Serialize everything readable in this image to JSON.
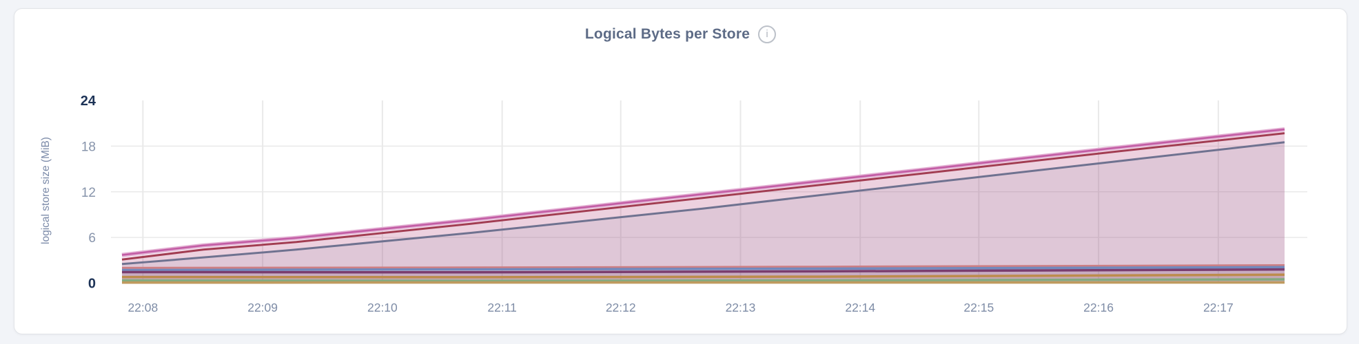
{
  "page": {
    "background": "#f2f4f8",
    "card_background": "#ffffff",
    "card_border": "#e2e4e8"
  },
  "header": {
    "title": "Logical Bytes per Store",
    "info_glyph": "i"
  },
  "chart_data": {
    "type": "area",
    "title": "Logical Bytes per Store",
    "xlabel": "",
    "ylabel": "logical store size (MiB)",
    "ylim": [
      0,
      24
    ],
    "y_ticks": [
      0,
      6,
      12,
      18,
      24
    ],
    "y_tick_emphasis": [
      0,
      24
    ],
    "y_gridlines": [
      6,
      12,
      18
    ],
    "x_tick_labels": [
      "22:08",
      "22:09",
      "22:10",
      "22:11",
      "22:12",
      "22:13",
      "22:14",
      "22:15",
      "22:16",
      "22:17"
    ],
    "x_tick_positions": [
      0.018,
      0.121,
      0.224,
      0.327,
      0.429,
      0.532,
      0.635,
      0.737,
      0.84,
      0.943
    ],
    "x_range_note": "data starts ~22:07:50 and ends ~22:17:30; x positions normalized 0-1 across plotted data",
    "grid": "on",
    "grid_color": "#e9e9e9",
    "legend": "none",
    "units": "MiB",
    "series": [
      {
        "name": "pink",
        "color": "#c25ba4",
        "halo_color": "#e2aed2",
        "line_width": 2.5,
        "fill_opacity": 0.17,
        "points": [
          [
            0,
            3.7
          ],
          [
            0.07,
            4.95
          ],
          [
            0.15,
            5.95
          ],
          [
            0.3,
            8.3
          ],
          [
            0.5,
            11.7
          ],
          [
            0.7,
            15.1
          ],
          [
            0.85,
            17.7
          ],
          [
            1,
            20.2
          ]
        ]
      },
      {
        "name": "maroon",
        "color": "#a23d52",
        "line_width": 3,
        "fill_opacity": 0.1,
        "points": [
          [
            0,
            3.1
          ],
          [
            0.07,
            4.4
          ],
          [
            0.15,
            5.4
          ],
          [
            0.3,
            7.8
          ],
          [
            0.5,
            11.2
          ],
          [
            0.7,
            14.6
          ],
          [
            0.85,
            17.2
          ],
          [
            1,
            19.7
          ]
        ]
      },
      {
        "name": "slate",
        "color": "#6f7290",
        "line_width": 3,
        "fill_opacity": 0.1,
        "points": [
          [
            0,
            2.5
          ],
          [
            0.08,
            3.5
          ],
          [
            0.15,
            4.4
          ],
          [
            0.3,
            6.6
          ],
          [
            0.5,
            9.8
          ],
          [
            0.7,
            13.3
          ],
          [
            0.85,
            15.9
          ],
          [
            1,
            18.5
          ]
        ]
      },
      {
        "name": "rose",
        "color": "#cd7f84",
        "line_width": 3,
        "fill_opacity": 0.1,
        "points": [
          [
            0,
            2.0
          ],
          [
            0.3,
            2.05
          ],
          [
            0.6,
            2.15
          ],
          [
            1,
            2.35
          ]
        ]
      },
      {
        "name": "blue",
        "color": "#7289bd",
        "line_width": 3.5,
        "fill_opacity": 0.1,
        "points": [
          [
            0,
            1.72
          ],
          [
            0.3,
            1.8
          ],
          [
            0.6,
            1.9
          ],
          [
            1,
            2.1
          ]
        ]
      },
      {
        "name": "purple",
        "color": "#7a3d6e",
        "line_width": 3.5,
        "fill_opacity": 0.1,
        "points": [
          [
            0,
            1.45
          ],
          [
            0.3,
            1.42
          ],
          [
            0.6,
            1.55
          ],
          [
            1,
            1.8
          ]
        ]
      },
      {
        "name": "amber",
        "color": "#bd8c4d",
        "line_width": 3.5,
        "fill_opacity": 0.12,
        "points": [
          [
            0,
            0.8
          ],
          [
            0.3,
            0.78
          ],
          [
            0.6,
            0.85
          ],
          [
            1,
            1.1
          ]
        ]
      },
      {
        "name": "green",
        "color": "#84aa80",
        "line_width": 3.5,
        "fill_opacity": 0.12,
        "points": [
          [
            0,
            0.35
          ],
          [
            0.3,
            0.3
          ],
          [
            0.6,
            0.35
          ],
          [
            1,
            0.5
          ]
        ]
      },
      {
        "name": "tan",
        "color": "#bf9a5e",
        "line_width": 3.5,
        "fill_opacity": 0.12,
        "points": [
          [
            0,
            0.07
          ],
          [
            1,
            0.08
          ]
        ]
      }
    ]
  }
}
